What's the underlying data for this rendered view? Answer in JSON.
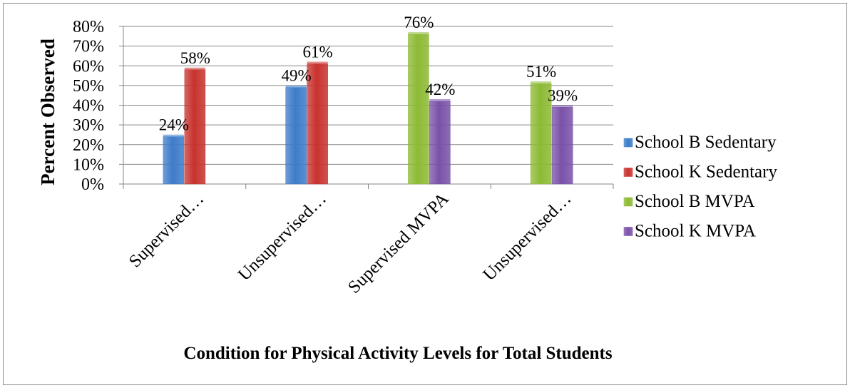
{
  "chart_data": {
    "type": "bar",
    "title": "",
    "xlabel": "Condition for Physical Activity Levels for Total Students",
    "ylabel": "Percent Observed",
    "ylim": [
      0,
      80
    ],
    "y_ticks": [
      "0%",
      "10%",
      "20%",
      "30%",
      "40%",
      "50%",
      "60%",
      "70%",
      "80%"
    ],
    "grid": true,
    "legend_position": "right",
    "categories": [
      "Supervised…",
      "Unsupervised…",
      "Supervised MVPA",
      "Unsupervised…"
    ],
    "series": [
      {
        "name": "School B Sedentary",
        "color": "#3d7cc9",
        "values": [
          24,
          49,
          null,
          null
        ],
        "labels": [
          "24%",
          "49%",
          "",
          ""
        ]
      },
      {
        "name": "School K Sedentary",
        "color": "#c8332e",
        "values": [
          58,
          61,
          null,
          null
        ],
        "labels": [
          "58%",
          "61%",
          "",
          ""
        ]
      },
      {
        "name": "School B MVPA",
        "color": "#8dba35",
        "values": [
          null,
          null,
          76,
          51
        ],
        "labels": [
          "",
          "",
          "76%",
          "51%"
        ]
      },
      {
        "name": "School K MVPA",
        "color": "#7a52a8",
        "values": [
          null,
          null,
          42,
          39
        ],
        "labels": [
          "",
          "",
          "42%",
          "39%"
        ]
      }
    ]
  }
}
